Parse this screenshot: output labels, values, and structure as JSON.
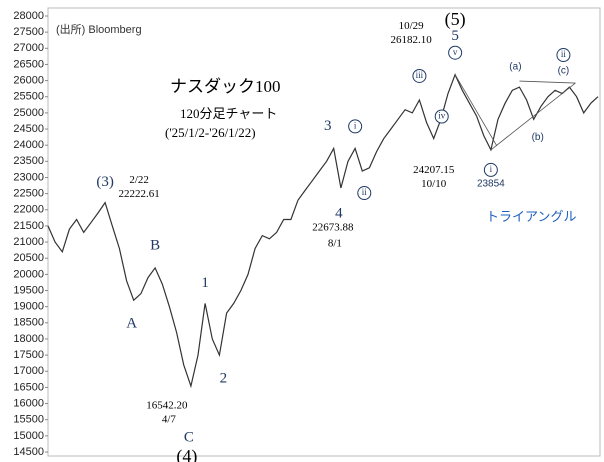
{
  "chart_data": {
    "type": "line",
    "title": "ナスダック100",
    "subtitle": "120分足チャート",
    "period": "('25/1/2-'26/1/22)",
    "source": "(出所) Bloomberg",
    "pattern_label": "トライアングル",
    "ylim": [
      14500,
      28000
    ],
    "yticks": [
      14500,
      15000,
      15500,
      16000,
      16500,
      17000,
      17500,
      18000,
      18500,
      19000,
      19500,
      20000,
      20500,
      21000,
      21500,
      22000,
      22500,
      23000,
      23500,
      24000,
      24500,
      25000,
      25500,
      26000,
      26500,
      27000,
      27500,
      28000
    ],
    "series": [
      {
        "name": "ナスダック100",
        "color": "#333333",
        "values": [
          21500,
          21000,
          20700,
          21400,
          21700,
          21300,
          21600,
          21900,
          22222,
          21500,
          20800,
          19800,
          19200,
          19400,
          19900,
          20200,
          19700,
          19000,
          18200,
          17200,
          16542,
          17500,
          19100,
          18000,
          17500,
          18800,
          19100,
          19500,
          20000,
          20800,
          21200,
          21100,
          21300,
          21700,
          21700,
          22300,
          22600,
          22900,
          23200,
          23500,
          23900,
          22674,
          23500,
          23900,
          23200,
          23300,
          23800,
          24200,
          24500,
          24800,
          25100,
          25000,
          25400,
          24700,
          24207,
          24800,
          25600,
          26182,
          25700,
          25300,
          24900,
          24300,
          23854,
          24800,
          25300,
          25700,
          25800,
          25400,
          24800,
          25200,
          25500,
          25700,
          25600,
          25800,
          25500,
          25000,
          25300,
          25500
        ]
      }
    ],
    "annotations": [
      "(3)",
      "2/22",
      "22222.61",
      "A",
      "B",
      "1",
      "2",
      "16542.20",
      "4/7",
      "C",
      "(4)",
      "3",
      "4",
      "22673.88",
      "8/1",
      "i",
      "ii",
      "iii",
      "iv",
      "24207.15",
      "10/10",
      "v",
      "5",
      "(5)",
      "10/29",
      "26182.10",
      "i",
      "23854",
      "(a)",
      "(b)",
      "(c)",
      "ii"
    ]
  }
}
